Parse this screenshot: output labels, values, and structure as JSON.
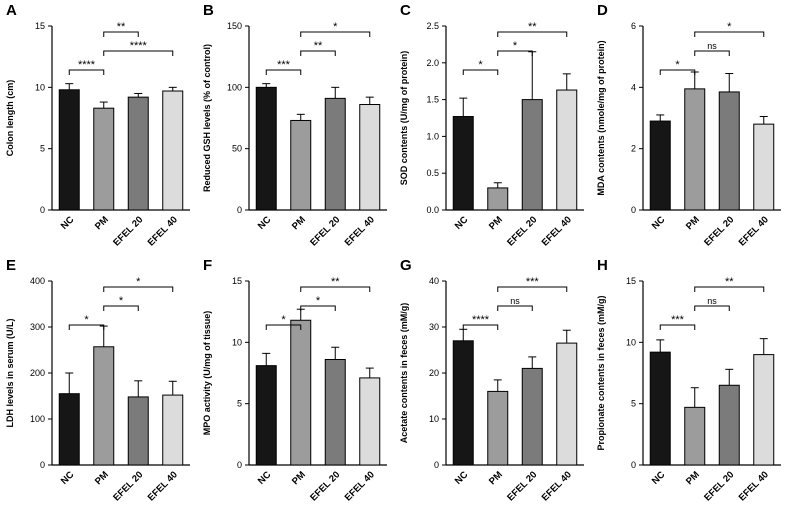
{
  "figure": {
    "background": "#ffffff",
    "bar_colors": [
      "#161616",
      "#9c9c9c",
      "#7b7b7b",
      "#dcdcdc"
    ],
    "bar_edge_color": "#000000",
    "axis_color": "#000000",
    "categories": [
      "NC",
      "PM",
      "EFEL 20",
      "EFEL 40"
    ]
  },
  "chart_data": [
    {
      "panel": "A",
      "type": "bar",
      "ylabel": "Colon length (cm)",
      "categories": [
        "NC",
        "PM",
        "EFEL 20",
        "EFEL 40"
      ],
      "values": [
        9.8,
        8.3,
        9.2,
        9.7
      ],
      "errors": [
        0.5,
        0.5,
        0.3,
        0.3
      ],
      "ylim": [
        0,
        15
      ],
      "yticks": [
        0,
        5,
        10,
        15
      ],
      "ytick_labels": [
        "0",
        "5",
        "10",
        "15"
      ],
      "grid": false,
      "significance": [
        {
          "from": 0,
          "to": 1,
          "label": "****",
          "level": 0
        },
        {
          "from": 1,
          "to": 3,
          "label": "****",
          "level": 1
        },
        {
          "from": 1,
          "to": 2,
          "label": "**",
          "level": 2
        }
      ]
    },
    {
      "panel": "B",
      "type": "bar",
      "ylabel": "Reduced GSH levels (% of control)",
      "categories": [
        "NC",
        "PM",
        "EFEL 20",
        "EFEL 40"
      ],
      "values": [
        100,
        73,
        91,
        86
      ],
      "errors": [
        3,
        5,
        9,
        6
      ],
      "ylim": [
        0,
        150
      ],
      "yticks": [
        0,
        50,
        100,
        150
      ],
      "ytick_labels": [
        "0",
        "50",
        "100",
        "150"
      ],
      "grid": false,
      "significance": [
        {
          "from": 0,
          "to": 1,
          "label": "***",
          "level": 0
        },
        {
          "from": 1,
          "to": 2,
          "label": "**",
          "level": 1
        },
        {
          "from": 1,
          "to": 3,
          "label": "*",
          "level": 2
        }
      ]
    },
    {
      "panel": "C",
      "type": "bar",
      "ylabel": "SOD contents (U/mg of protein)",
      "categories": [
        "NC",
        "PM",
        "EFEL 20",
        "EFEL 40"
      ],
      "values": [
        1.27,
        0.3,
        1.5,
        1.63
      ],
      "errors": [
        0.25,
        0.07,
        0.65,
        0.22
      ],
      "ylim": [
        0,
        2.5
      ],
      "yticks": [
        0,
        0.5,
        1.0,
        1.5,
        2.0,
        2.5
      ],
      "ytick_labels": [
        "0.0",
        "0.5",
        "1.0",
        "1.5",
        "2.0",
        "2.5"
      ],
      "grid": false,
      "significance": [
        {
          "from": 0,
          "to": 1,
          "label": "*",
          "level": 0
        },
        {
          "from": 1,
          "to": 2,
          "label": "*",
          "level": 1
        },
        {
          "from": 1,
          "to": 3,
          "label": "**",
          "level": 2
        }
      ]
    },
    {
      "panel": "D",
      "type": "bar",
      "ylabel": "MDA contents (nmole/mg of protein)",
      "categories": [
        "NC",
        "PM",
        "EFEL 20",
        "EFEL 40"
      ],
      "values": [
        2.9,
        3.95,
        3.85,
        2.8
      ],
      "errors": [
        0.2,
        0.55,
        0.6,
        0.25
      ],
      "ylim": [
        0,
        6
      ],
      "yticks": [
        0,
        2,
        4,
        6
      ],
      "ytick_labels": [
        "0",
        "2",
        "4",
        "6"
      ],
      "grid": false,
      "significance": [
        {
          "from": 0,
          "to": 1,
          "label": "*",
          "level": 0
        },
        {
          "from": 1,
          "to": 2,
          "label": "ns",
          "level": 1
        },
        {
          "from": 1,
          "to": 3,
          "label": "*",
          "level": 2
        }
      ]
    },
    {
      "panel": "E",
      "type": "bar",
      "ylabel": "LDH levels in serum (U/L)",
      "categories": [
        "NC",
        "PM",
        "EFEL 20",
        "EFEL 40"
      ],
      "values": [
        155,
        257,
        148,
        152
      ],
      "errors": [
        45,
        45,
        35,
        30
      ],
      "ylim": [
        0,
        400
      ],
      "yticks": [
        0,
        100,
        200,
        300,
        400
      ],
      "ytick_labels": [
        "0",
        "100",
        "200",
        "300",
        "400"
      ],
      "grid": false,
      "significance": [
        {
          "from": 0,
          "to": 1,
          "label": "*",
          "level": 0
        },
        {
          "from": 1,
          "to": 2,
          "label": "*",
          "level": 1
        },
        {
          "from": 1,
          "to": 3,
          "label": "*",
          "level": 2
        }
      ]
    },
    {
      "panel": "F",
      "type": "bar",
      "ylabel": "MPO activity (U/mg of tissue)",
      "categories": [
        "NC",
        "PM",
        "EFEL 20",
        "EFEL 40"
      ],
      "values": [
        8.1,
        11.8,
        8.6,
        7.1
      ],
      "errors": [
        1.0,
        0.9,
        1.0,
        0.8
      ],
      "ylim": [
        0,
        15
      ],
      "yticks": [
        0,
        5,
        10,
        15
      ],
      "ytick_labels": [
        "0",
        "5",
        "10",
        "15"
      ],
      "grid": false,
      "significance": [
        {
          "from": 0,
          "to": 1,
          "label": "*",
          "level": 0
        },
        {
          "from": 1,
          "to": 2,
          "label": "*",
          "level": 1
        },
        {
          "from": 1,
          "to": 3,
          "label": "**",
          "level": 2
        }
      ]
    },
    {
      "panel": "G",
      "type": "bar",
      "ylabel": "Acetate contents in feces (mM/g)",
      "categories": [
        "NC",
        "PM",
        "EFEL 20",
        "EFEL 40"
      ],
      "values": [
        27,
        16,
        21,
        26.5
      ],
      "errors": [
        2.5,
        2.5,
        2.5,
        2.8
      ],
      "ylim": [
        0,
        40
      ],
      "yticks": [
        0,
        10,
        20,
        30,
        40
      ],
      "ytick_labels": [
        "0",
        "10",
        "20",
        "30",
        "40"
      ],
      "grid": false,
      "significance": [
        {
          "from": 0,
          "to": 1,
          "label": "****",
          "level": 0
        },
        {
          "from": 1,
          "to": 2,
          "label": "ns",
          "level": 1
        },
        {
          "from": 1,
          "to": 3,
          "label": "***",
          "level": 2
        }
      ]
    },
    {
      "panel": "H",
      "type": "bar",
      "ylabel": "Propionate contents in feces (mM/g)",
      "categories": [
        "NC",
        "PM",
        "EFEL 20",
        "EFEL 40"
      ],
      "values": [
        9.2,
        4.7,
        6.5,
        9.0
      ],
      "errors": [
        1.0,
        1.6,
        1.3,
        1.3
      ],
      "ylim": [
        0,
        15
      ],
      "yticks": [
        0,
        5,
        10,
        15
      ],
      "ytick_labels": [
        "0",
        "5",
        "10",
        "15"
      ],
      "grid": false,
      "significance": [
        {
          "from": 0,
          "to": 1,
          "label": "***",
          "level": 0
        },
        {
          "from": 1,
          "to": 2,
          "label": "ns",
          "level": 1
        },
        {
          "from": 1,
          "to": 3,
          "label": "**",
          "level": 2
        }
      ]
    }
  ]
}
